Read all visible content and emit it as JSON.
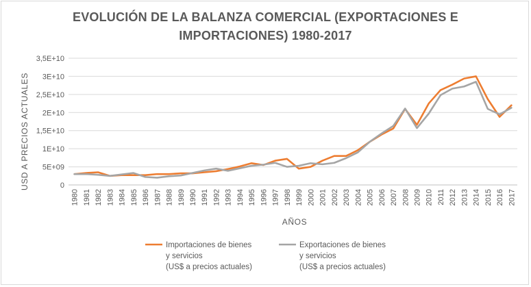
{
  "chart_data": {
    "type": "line",
    "title": "EVOLUCIÓN DE LA BALANZA COMERCIAL (EXPORTACIONES E IMPORTACIONES) 1980-2017",
    "title_lines": [
      "EVOLUCIÓN DE LA BALANZA COMERCIAL (EXPORTACIONES E",
      "IMPORTACIONES) 1980-2017"
    ],
    "xlabel": "AÑOS",
    "ylabel": "USD A PRECIOS ACTUALES",
    "ylim": [
      0,
      35000000000
    ],
    "yticks": [
      0,
      5000000000,
      10000000000,
      15000000000,
      20000000000,
      25000000000,
      30000000000,
      35000000000
    ],
    "ytick_labels": [
      "0",
      "5E+09",
      "1E+10",
      "1,5E+10",
      "2E+10",
      "2,5E+10",
      "3E+10",
      "3,5E+10"
    ],
    "grid": true,
    "legend_position": "bottom",
    "x": [
      "1980",
      "1981",
      "1982",
      "1983",
      "1984",
      "1985",
      "1986",
      "1987",
      "1988",
      "1989",
      "1990",
      "1991",
      "1992",
      "1993",
      "1994",
      "1995",
      "1996",
      "1997",
      "1998",
      "1999",
      "2000",
      "2001",
      "2002",
      "2003",
      "2004",
      "2005",
      "2006",
      "2007",
      "2008",
      "2009",
      "2010",
      "2011",
      "2012",
      "2013",
      "2014",
      "2015",
      "2016",
      "2017"
    ],
    "series": [
      {
        "name": "Importaciones de bienes y servicios (US$ a precios actuales)",
        "name_lines": [
          "Importaciones de bienes",
          "y servicios",
          "(US$ a precios actuales)"
        ],
        "color": "#ed7d31",
        "values": [
          3000000000.0,
          3300000000.0,
          3500000000.0,
          2500000000.0,
          2700000000.0,
          2700000000.0,
          2700000000.0,
          3000000000.0,
          3000000000.0,
          3200000000.0,
          3200000000.0,
          3500000000.0,
          3800000000.0,
          4400000000.0,
          5100000000.0,
          6000000000.0,
          5500000000.0,
          6700000000.0,
          7200000000.0,
          4500000000.0,
          5000000000.0,
          6700000000.0,
          8000000000.0,
          8000000000.0,
          9600000000.0,
          11900000000.0,
          13900000000.0,
          15600000000.0,
          21000000000.0,
          16600000000.0,
          22500000000.0,
          26200000000.0,
          27700000000.0,
          29400000000.0,
          30000000000.0,
          23700000000.0,
          18800000000.0,
          22000000000.0
        ]
      },
      {
        "name": "Exportaciones de bienes y servicios (US$ a precios actuales)",
        "name_lines": [
          "Exportaciones de bienes",
          "y servicios",
          "(US$ a precios actuales)"
        ],
        "color": "#a5a5a5",
        "values": [
          3000000000.0,
          3000000000.0,
          2800000000.0,
          2500000000.0,
          2900000000.0,
          3300000000.0,
          2200000000.0,
          2000000000.0,
          2400000000.0,
          2600000000.0,
          3300000000.0,
          4000000000.0,
          4500000000.0,
          3900000000.0,
          4600000000.0,
          5300000000.0,
          5600000000.0,
          6100000000.0,
          5000000000.0,
          5300000000.0,
          6000000000.0,
          5700000000.0,
          6100000000.0,
          7400000000.0,
          9000000000.0,
          11900000000.0,
          14200000000.0,
          16300000000.0,
          21100000000.0,
          15700000000.0,
          19700000000.0,
          24800000000.0,
          26600000000.0,
          27200000000.0,
          28500000000.0,
          21000000000.0,
          19500000000.0,
          21300000000.0
        ]
      }
    ]
  }
}
